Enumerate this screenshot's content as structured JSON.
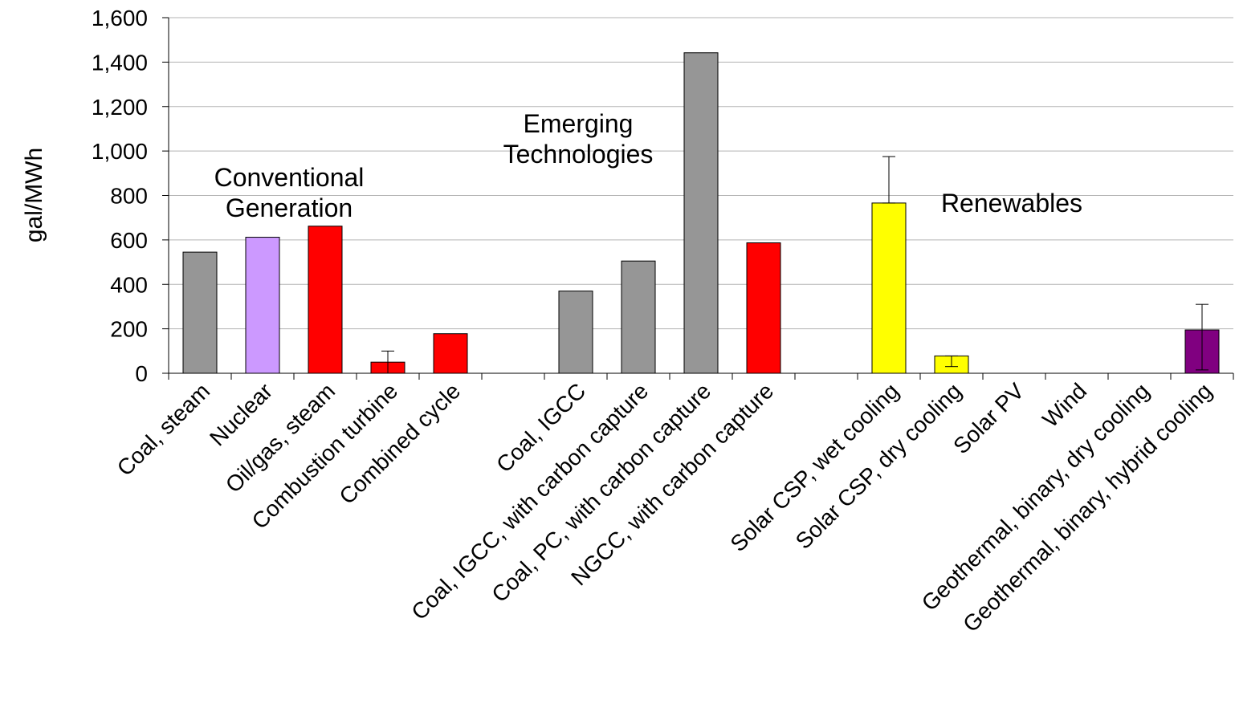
{
  "chart_data": {
    "type": "bar",
    "title": "",
    "xlabel": "",
    "ylabel": "gal/MWh",
    "ylim": [
      0,
      1600
    ],
    "yticks": [
      0,
      200,
      400,
      600,
      800,
      1000,
      1200,
      1400,
      1600
    ],
    "ytick_labels": [
      "0",
      "200",
      "400",
      "600",
      "800",
      "1,000",
      "1,200",
      "1,400",
      "1,600"
    ],
    "grid": true,
    "categories": [
      "Coal, steam",
      "Nuclear",
      "Oil/gas, steam",
      "Combustion turbine",
      "Combined cycle",
      "",
      "Coal, IGCC",
      "Coal, IGCC, with carbon capture",
      "Coal, PC, with carbon capture",
      "NGCC, with carbon capture",
      "",
      "Solar CSP, wet cooling",
      "Solar CSP, dry cooling",
      "Solar PV",
      "Wind",
      "Geothermal, binary, dry cooling",
      "Geothermal, binary, hybrid cooling"
    ],
    "values": [
      545,
      612,
      662,
      50,
      178,
      null,
      370,
      505,
      1442,
      587,
      null,
      766,
      78,
      0,
      0,
      0,
      195
    ],
    "colors": [
      "#969696",
      "#CC99FF",
      "#FF0000",
      "#FF0000",
      "#FF0000",
      null,
      "#969696",
      "#969696",
      "#969696",
      "#FF0000",
      null,
      "#FFFF00",
      "#FFFF00",
      null,
      null,
      null,
      "#800080"
    ],
    "error_bars": [
      null,
      null,
      null,
      [
        0,
        100
      ],
      null,
      null,
      null,
      null,
      null,
      null,
      null,
      [
        766,
        975
      ],
      [
        30,
        78
      ],
      null,
      null,
      null,
      [
        15,
        310
      ]
    ],
    "annotations": [
      {
        "lines": [
          "Conventional",
          "Generation"
        ]
      },
      {
        "lines": [
          "Emerging",
          "Technologies"
        ]
      },
      {
        "lines": [
          "Renewables"
        ]
      }
    ]
  }
}
